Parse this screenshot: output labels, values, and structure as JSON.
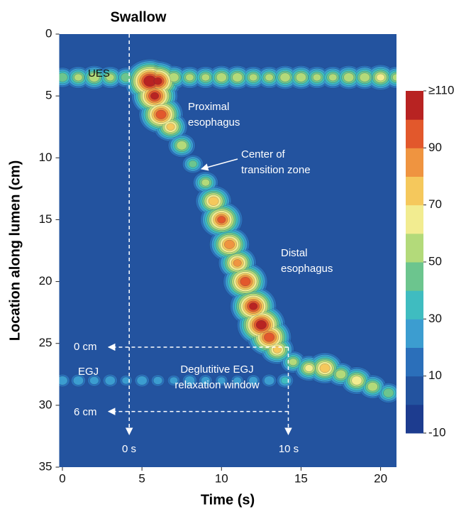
{
  "chart_data": {
    "type": "heatmap",
    "title": "Swallow",
    "xlabel": "Time (s)",
    "ylabel": "Location along lumen (cm)",
    "xlim": [
      -0.2,
      21
    ],
    "ylim": [
      0,
      35
    ],
    "xticks": [
      0,
      5,
      10,
      15,
      20
    ],
    "yticks": [
      0,
      5,
      10,
      15,
      20,
      25,
      30,
      35
    ],
    "clim": [
      -10,
      110
    ],
    "cticks": [
      {
        "value": 110,
        "label": "≥110"
      },
      90,
      70,
      50,
      30,
      10,
      -10
    ],
    "colorscale": [
      "#1d3c8f",
      "#23539f",
      "#2b6fba",
      "#3c9dd0",
      "#3fbcc0",
      "#6cc58e",
      "#b3da7a",
      "#f2ec90",
      "#f5c85c",
      "#ef9440",
      "#e2582c",
      "#b82322"
    ],
    "tracks": [
      {
        "x": [
          0,
          1,
          2,
          3,
          4,
          5,
          5.5,
          6,
          7,
          8,
          9,
          10,
          11,
          12,
          13,
          14,
          15,
          16,
          17,
          18,
          19,
          20,
          21
        ],
        "y": [
          3.5,
          3.5,
          3.5,
          3.5,
          3.5,
          3.5,
          3.8,
          3.8,
          3.5,
          3.5,
          3.5,
          3.5,
          3.5,
          3.5,
          3.5,
          3.5,
          3.5,
          3.5,
          3.5,
          3.5,
          3.5,
          3.5,
          3.5
        ],
        "values": [
          45,
          50,
          55,
          50,
          45,
          50,
          110,
          100,
          55,
          50,
          50,
          55,
          55,
          50,
          50,
          55,
          55,
          50,
          50,
          55,
          55,
          60,
          50
        ]
      },
      {
        "x": [
          5.8,
          6.2,
          6.8,
          7.5,
          8.2,
          9,
          9.5,
          10,
          10.5,
          11,
          11.5,
          12,
          12.5,
          13,
          13.5,
          14.5,
          15.5,
          16.5,
          17.5,
          18.5,
          19.5,
          20.5
        ],
        "y": [
          5,
          6.5,
          7.5,
          9,
          10.5,
          12,
          13.5,
          15,
          17,
          18.5,
          20,
          22,
          23.5,
          24.5,
          25.5,
          26.5,
          27,
          27,
          27.5,
          28,
          28.5,
          29
        ],
        "values": [
          100,
          95,
          70,
          55,
          40,
          50,
          75,
          90,
          85,
          80,
          95,
          100,
          105,
          95,
          70,
          50,
          60,
          75,
          55,
          65,
          55,
          45
        ]
      },
      {
        "x": [
          0,
          1,
          2,
          3,
          4,
          5,
          6,
          7,
          8,
          9,
          10,
          11,
          12,
          13,
          14
        ],
        "y": [
          28,
          28,
          28,
          28,
          28,
          28,
          28,
          28,
          28,
          28,
          28,
          28,
          28,
          28,
          28
        ],
        "values": [
          25,
          25,
          22,
          25,
          20,
          25,
          22,
          20,
          25,
          22,
          20,
          20,
          22,
          25,
          30
        ]
      }
    ],
    "vlines": [
      4.2,
      14.2
    ],
    "hlines": [
      25.3,
      30.5
    ],
    "annotations": [
      [
        "UES"
      ],
      [
        "Proximal",
        "esophagus"
      ],
      [
        "Center of",
        "transition zone"
      ],
      [
        "Distal",
        "esophagus"
      ],
      [
        "EGJ"
      ],
      [
        "Deglutitive EGJ",
        "relaxation window"
      ],
      [
        "0 cm"
      ],
      [
        "6 cm"
      ],
      [
        "0 s"
      ],
      [
        "10 s"
      ]
    ]
  }
}
